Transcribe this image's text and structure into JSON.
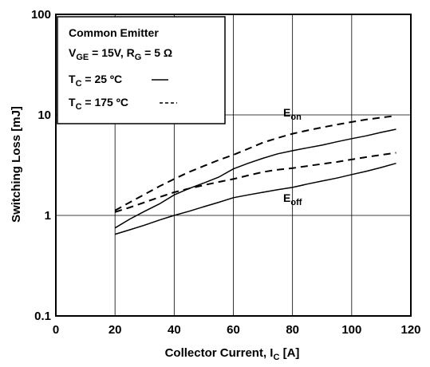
{
  "chart_data": {
    "type": "line",
    "xlabel": "Collector Current, I",
    "xlabel_sub": "C",
    "xlabel_unit": " [A]",
    "ylabel": "Switching Loss [mJ]",
    "xlim": [
      0,
      120
    ],
    "ylim": [
      0.1,
      100
    ],
    "y_scale": "log",
    "grid": true,
    "x_ticks": [
      0,
      20,
      40,
      60,
      80,
      100,
      120
    ],
    "y_ticks": [
      0.1,
      1,
      10,
      100
    ],
    "x_tick_labels": [
      "0",
      "20",
      "40",
      "60",
      "80",
      "100",
      "120"
    ],
    "y_tick_labels": [
      "0.1",
      "1",
      "10",
      "100"
    ],
    "legend": {
      "position": "top-left",
      "title": "Common Emitter",
      "cond_vge_main": "V",
      "cond_vge_sub": "GE",
      "cond_vge_rest": " = 15V, R",
      "cond_rg_sub": "G",
      "cond_rg_rest": " = 5 Ω",
      "t25_main": "T",
      "t25_sub": "C",
      "t25_rest": " = 25 ºC",
      "t175_main": "T",
      "t175_sub": "C",
      "t175_rest": " = 175 ºC"
    },
    "curve_labels": {
      "on_main": "E",
      "on_sub": "on",
      "off_main": "E",
      "off_sub": "off"
    },
    "series": [
      {
        "group": "Eon",
        "temp": "25C",
        "style": "solid",
        "x": [
          20,
          25,
          30,
          35,
          40,
          45,
          50,
          55,
          60,
          65,
          70,
          75,
          80,
          85,
          90,
          95,
          100,
          105,
          110,
          115
        ],
        "y": [
          0.75,
          0.92,
          1.1,
          1.3,
          1.6,
          1.85,
          2.1,
          2.4,
          2.9,
          3.3,
          3.7,
          4.1,
          4.4,
          4.7,
          5.0,
          5.4,
          5.8,
          6.2,
          6.7,
          7.2
        ]
      },
      {
        "group": "Eon",
        "temp": "175C",
        "style": "dashed",
        "x": [
          20,
          25,
          30,
          35,
          40,
          45,
          50,
          55,
          60,
          65,
          70,
          75,
          80,
          85,
          90,
          95,
          100,
          105,
          110,
          115
        ],
        "y": [
          1.12,
          1.35,
          1.62,
          1.95,
          2.3,
          2.7,
          3.1,
          3.55,
          4.0,
          4.6,
          5.3,
          5.9,
          6.5,
          7.0,
          7.5,
          8.0,
          8.5,
          9.0,
          9.4,
          9.8
        ]
      },
      {
        "group": "Eoff",
        "temp": "25C",
        "style": "solid",
        "x": [
          20,
          25,
          30,
          35,
          40,
          45,
          50,
          55,
          60,
          65,
          70,
          75,
          80,
          85,
          90,
          95,
          100,
          105,
          110,
          115
        ],
        "y": [
          0.65,
          0.72,
          0.8,
          0.9,
          1.0,
          1.1,
          1.22,
          1.35,
          1.5,
          1.6,
          1.7,
          1.8,
          1.9,
          2.05,
          2.2,
          2.35,
          2.55,
          2.75,
          3.0,
          3.3
        ]
      },
      {
        "group": "Eoff",
        "temp": "175C",
        "style": "dashed",
        "x": [
          20,
          25,
          30,
          35,
          40,
          45,
          50,
          55,
          60,
          65,
          70,
          75,
          80,
          85,
          90,
          95,
          100,
          105,
          110,
          115
        ],
        "y": [
          1.08,
          1.2,
          1.35,
          1.52,
          1.7,
          1.85,
          2.0,
          2.15,
          2.3,
          2.5,
          2.7,
          2.85,
          2.95,
          3.1,
          3.25,
          3.4,
          3.6,
          3.8,
          4.0,
          4.2
        ]
      }
    ]
  }
}
